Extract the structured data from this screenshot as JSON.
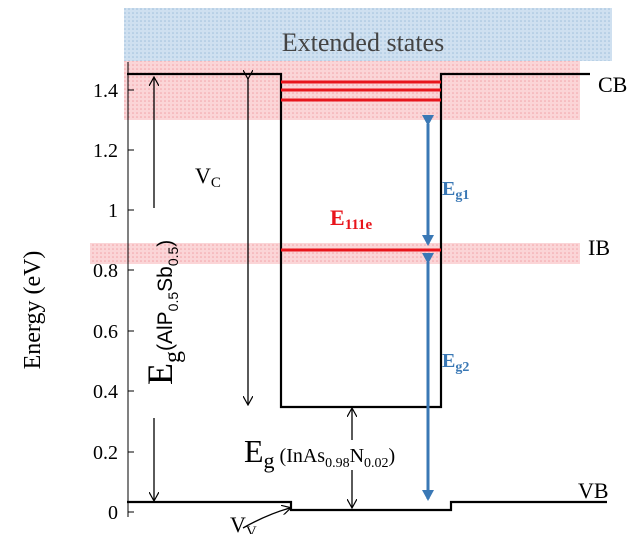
{
  "y_axis": {
    "label": "Energy (eV)",
    "tick_labels": [
      "0",
      "0.2",
      "0.4",
      "0.6",
      "0.8",
      "1",
      "1.2",
      "1.4"
    ]
  },
  "bands": {
    "extended_states": "Extended states",
    "cb": "CB",
    "ib": "IB",
    "vb": "VB"
  },
  "labels": {
    "vc_main": "V",
    "vc_sub": "C",
    "vv_main": "V",
    "vv_sub": "V",
    "e111e_main": "E",
    "e111e_sub": "111e",
    "eg1_main": "E",
    "eg1_sub": "g1",
    "eg2_main": "E",
    "eg2_sub": "g2",
    "eg_barrier_main": "E",
    "eg_barrier_sub": "g",
    "eg_barrier_material_a": "(AlP",
    "eg_barrier_material_a_sub": "0.5",
    "eg_barrier_material_b": "Sb",
    "eg_barrier_material_b_sub": "0.5",
    "eg_barrier_material_close": ")",
    "eg_well_main": "E",
    "eg_well_sub": "g",
    "eg_well_material_a": " (InAs",
    "eg_well_material_a_sub": "0.98",
    "eg_well_material_b": "N",
    "eg_well_material_b_sub": "0.02",
    "eg_well_material_close": ")"
  },
  "colors": {
    "extended_states_fill": "#c9dcee",
    "band_shade": "#f8c4c8",
    "red_level": "#e8141b",
    "blue_arrow": "#3a78b5",
    "line": "#000000"
  }
}
